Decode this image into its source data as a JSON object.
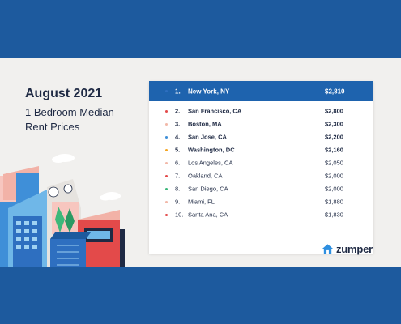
{
  "heading": "August 2021",
  "subheading": "1 Bedroom Median Rent Prices",
  "rows": [
    {
      "rank": "1.",
      "city": "New York, NY",
      "price": "$2,810",
      "dot": "#2e6fc0"
    },
    {
      "rank": "2.",
      "city": "San Francisco, CA",
      "price": "$2,800",
      "dot": "#e34a4a"
    },
    {
      "rank": "3.",
      "city": "Boston, MA",
      "price": "$2,300",
      "dot": "#f2b8a8"
    },
    {
      "rank": "4.",
      "city": "San Jose, CA",
      "price": "$2,200",
      "dot": "#3f8fd8"
    },
    {
      "rank": "5.",
      "city": "Washington, DC",
      "price": "$2,160",
      "dot": "#f5a623"
    },
    {
      "rank": "6.",
      "city": "Los Angeles, CA",
      "price": "$2,050",
      "dot": "#f2b8a8"
    },
    {
      "rank": "7.",
      "city": "Oakland, CA",
      "price": "$2,000",
      "dot": "#e34a4a"
    },
    {
      "rank": "8.",
      "city": "San Diego, CA",
      "price": "$2,000",
      "dot": "#3cb87a"
    },
    {
      "rank": "9.",
      "city": "Miami, FL",
      "price": "$1,880",
      "dot": "#f2b8a8"
    },
    {
      "rank": "10.",
      "city": "Santa Ana, CA",
      "price": "$1,830",
      "dot": "#e34a4a"
    }
  ],
  "logo": {
    "text": "zumper",
    "icon": "house-icon"
  },
  "colors": {
    "brand_blue": "#1d5a9e",
    "highlight_row": "#1e63ae",
    "text": "#1f2a44"
  }
}
